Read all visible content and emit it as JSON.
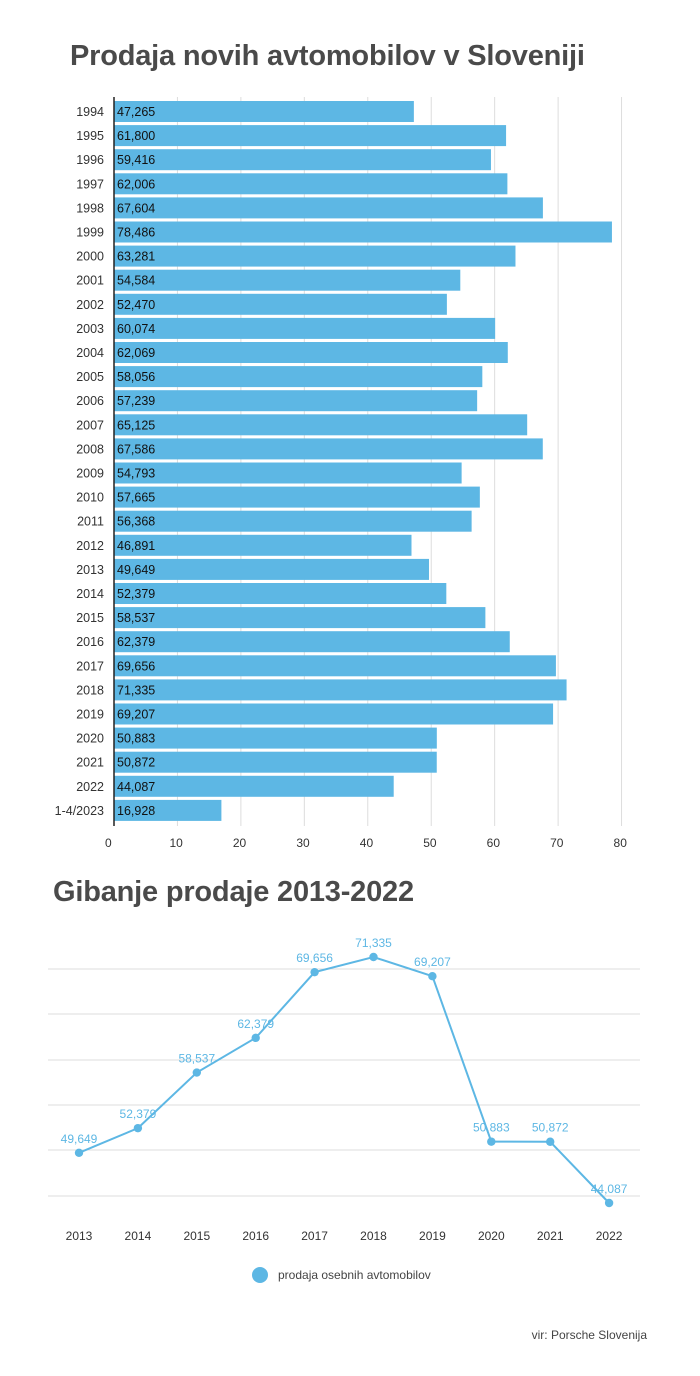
{
  "titles": {
    "bar_chart": "Prodaja novih avtomobilov v Sloveniji",
    "line_chart": "Gibanje prodaje 2013-2022"
  },
  "legend": {
    "label": "prodaja osebnih avtomobilov"
  },
  "source": "vir: Porsche Slovenija",
  "colors": {
    "bar": "#5db7e4",
    "line": "#5db7e4",
    "label": "#5db7e4"
  },
  "chart_data": [
    {
      "type": "bar",
      "orientation": "horizontal",
      "title": "Prodaja novih avtomobilov v Sloveniji",
      "categories": [
        "1994",
        "1995",
        "1996",
        "1997",
        "1998",
        "1999",
        "2000",
        "2001",
        "2002",
        "2003",
        "2004",
        "2005",
        "2006",
        "2007",
        "2008",
        "2009",
        "2010",
        "2011",
        "2012",
        "2013",
        "2014",
        "2015",
        "2016",
        "2017",
        "2018",
        "2019",
        "2020",
        "2021",
        "2022",
        "1-4/2023"
      ],
      "values": [
        47.265,
        61.8,
        59.416,
        62.006,
        67.604,
        78.486,
        63.281,
        54.584,
        52.47,
        60.074,
        62.069,
        58.056,
        57.239,
        65.125,
        67.586,
        54.793,
        57.665,
        56.368,
        46.891,
        49.649,
        52.379,
        58.537,
        62.379,
        69.656,
        71.335,
        69.207,
        50.883,
        50.872,
        44.087,
        16.928
      ],
      "value_labels": [
        "47,265",
        "61,800",
        "59,416",
        "62,006",
        "67,604",
        "78,486",
        "63,281",
        "54,584",
        "52,470",
        "60,074",
        "62,069",
        "58,056",
        "57,239",
        "65,125",
        "67,586",
        "54,793",
        "57,665",
        "56,368",
        "46,891",
        "49,649",
        "52,379",
        "58,537",
        "62,379",
        "69,656",
        "71,335",
        "69,207",
        "50,883",
        "50,872",
        "44,087",
        "16,928"
      ],
      "xlim": [
        0,
        80
      ],
      "xticks": [
        "0",
        "10",
        "20",
        "30",
        "40",
        "50",
        "60",
        "70",
        "80"
      ],
      "grid": true
    },
    {
      "type": "line",
      "title": "Gibanje prodaje 2013-2022",
      "x": [
        "2013",
        "2014",
        "2015",
        "2016",
        "2017",
        "2018",
        "2019",
        "2020",
        "2021",
        "2022"
      ],
      "series": [
        {
          "name": "prodaja osebnih avtomobilov",
          "values": [
            49649,
            52379,
            58537,
            62379,
            69656,
            71335,
            69207,
            50883,
            50872,
            44087
          ],
          "labels": [
            "49,649",
            "52,379",
            "58,537",
            "62,379",
            "69,656",
            "71,335",
            "69,207",
            "50,883",
            "50,872",
            "44,087"
          ]
        }
      ],
      "grid": true,
      "legend": "bottom"
    }
  ]
}
